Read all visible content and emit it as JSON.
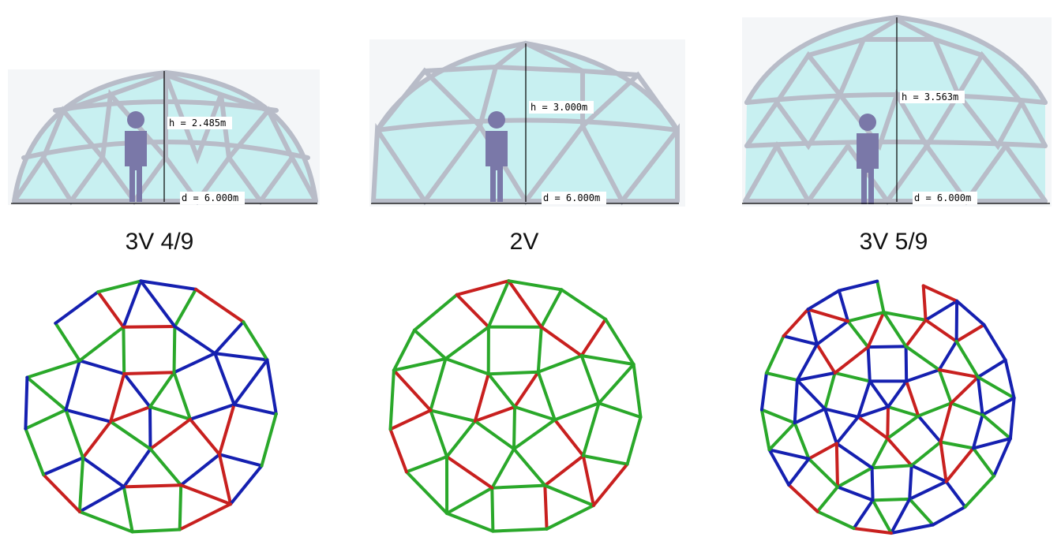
{
  "domes": [
    {
      "caption": "3V 4/9",
      "height_label": "h = 2.485m",
      "diameter_label": "d = 6.000m",
      "height_m": 2.485,
      "diameter_m": 6.0
    },
    {
      "caption": "2V",
      "height_label": "h = 3.000m",
      "diameter_label": "d = 6.000m",
      "height_m": 3.0,
      "diameter_m": 6.0
    },
    {
      "caption": "3V 5/9",
      "height_label": "h = 3.563m",
      "diameter_label": "d = 6.000m",
      "height_m": 3.563,
      "diameter_m": 6.0
    }
  ],
  "colors": {
    "strut_a": "#c8201f",
    "strut_b": "#2aa82a",
    "strut_c": "#1520b0",
    "glass": "#bfeef0",
    "frame": "#b8bcc8",
    "person": "#7a78a8"
  }
}
